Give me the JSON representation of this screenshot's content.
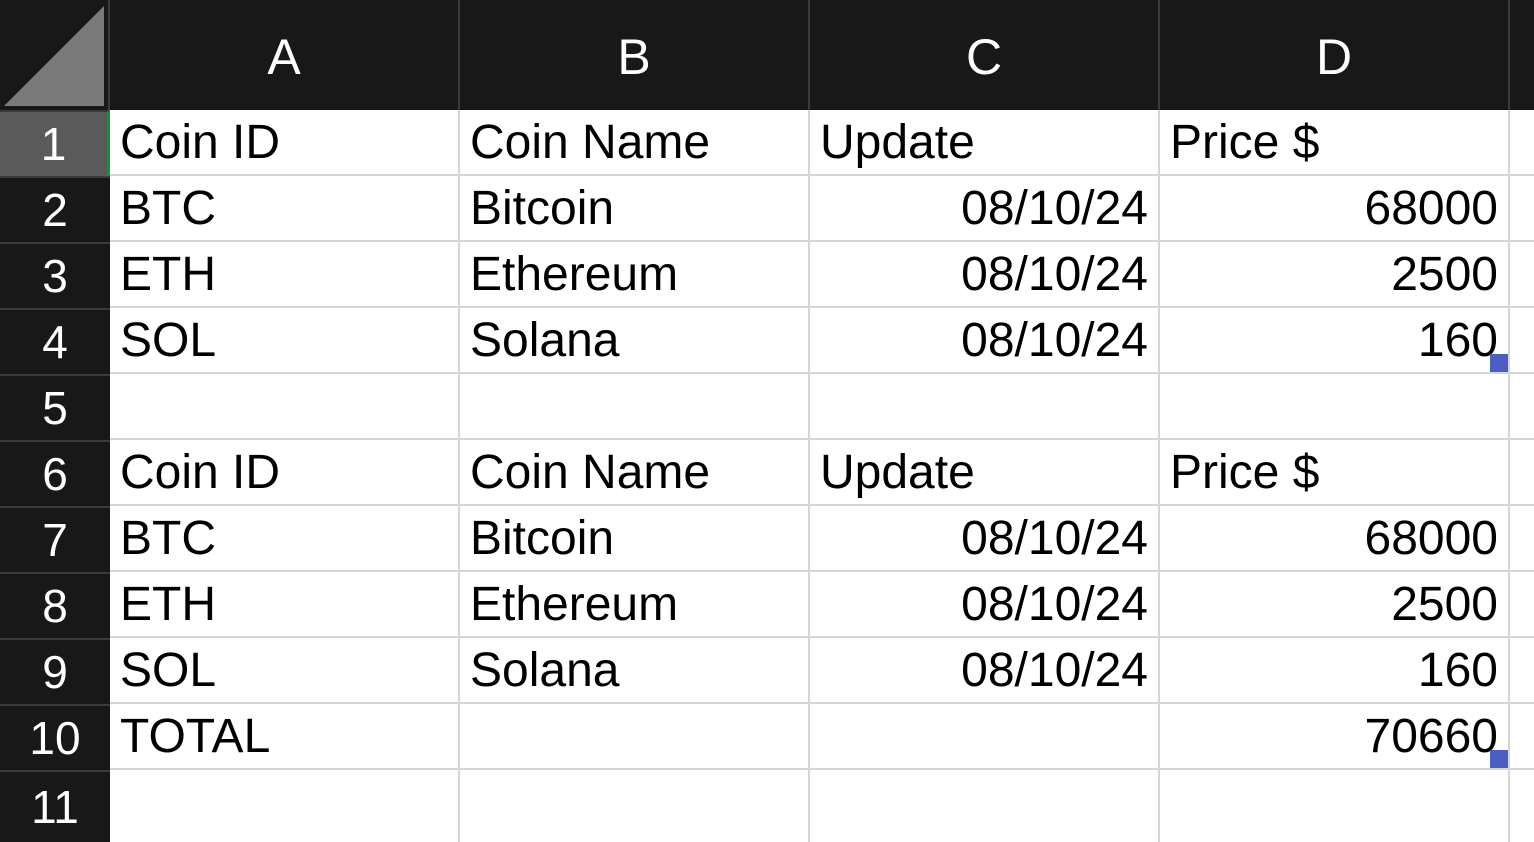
{
  "columns": [
    "A",
    "B",
    "C",
    "D"
  ],
  "rows": [
    {
      "num": "1",
      "cells": [
        "Coin ID",
        "Coin Name",
        "Update",
        "Price $"
      ]
    },
    {
      "num": "2",
      "cells": [
        "BTC",
        "Bitcoin",
        "08/10/24",
        "68000"
      ]
    },
    {
      "num": "3",
      "cells": [
        "ETH",
        "Ethereum",
        "08/10/24",
        "2500"
      ]
    },
    {
      "num": "4",
      "cells": [
        "SOL",
        "Solana",
        "08/10/24",
        "160"
      ]
    },
    {
      "num": "5",
      "cells": [
        "",
        "",
        "",
        ""
      ]
    },
    {
      "num": "6",
      "cells": [
        "Coin ID",
        "Coin Name",
        "Update",
        "Price $"
      ]
    },
    {
      "num": "7",
      "cells": [
        "BTC",
        "Bitcoin",
        "08/10/24",
        "68000"
      ]
    },
    {
      "num": "8",
      "cells": [
        "ETH",
        "Ethereum",
        "08/10/24",
        "2500"
      ]
    },
    {
      "num": "9",
      "cells": [
        "SOL",
        "Solana",
        "08/10/24",
        "160"
      ]
    },
    {
      "num": "10",
      "cells": [
        "TOTAL",
        "",
        "",
        "70660"
      ]
    },
    {
      "num": "11",
      "cells": [
        "",
        "",
        "",
        ""
      ]
    }
  ]
}
